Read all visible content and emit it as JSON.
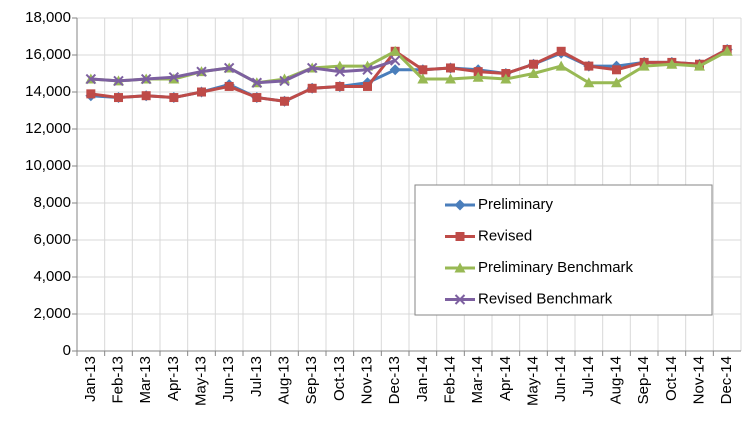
{
  "chart_data": {
    "type": "line",
    "categories": [
      "Jan-13",
      "Feb-13",
      "Mar-13",
      "Apr-13",
      "May-13",
      "Jun-13",
      "Jul-13",
      "Aug-13",
      "Sep-13",
      "Oct-13",
      "Nov-13",
      "Dec-13",
      "Jan-14",
      "Feb-14",
      "Mar-14",
      "Apr-14",
      "May-14",
      "Jun-14",
      "Jul-14",
      "Aug-14",
      "Sep-14",
      "Oct-14",
      "Nov-14",
      "Dec-14"
    ],
    "series": [
      {
        "name": "Preliminary",
        "color": "#4a7ebb",
        "marker": "diamond",
        "values": [
          13800,
          13700,
          13800,
          13700,
          14000,
          14400,
          13700,
          13500,
          14200,
          14300,
          14500,
          15200,
          15200,
          15300,
          15200,
          15000,
          15500,
          16100,
          15400,
          15400,
          15600,
          15600,
          15500,
          16300
        ]
      },
      {
        "name": "Revised",
        "color": "#be4b48",
        "marker": "square",
        "values": [
          13900,
          13700,
          13800,
          13700,
          14000,
          14300,
          13700,
          13500,
          14200,
          14300,
          14300,
          16200,
          15200,
          15300,
          15100,
          15000,
          15500,
          16200,
          15400,
          15200,
          15600,
          15600,
          15500,
          16300
        ]
      },
      {
        "name": "Preliminary Benchmark",
        "color": "#98b954",
        "marker": "triangle",
        "values": [
          14700,
          14600,
          14700,
          14700,
          15100,
          15300,
          14500,
          14700,
          15300,
          15400,
          15400,
          16200,
          14700,
          14700,
          14800,
          14700,
          15000,
          15400,
          14500,
          14500,
          15400,
          15500,
          15400,
          16200
        ]
      },
      {
        "name": "Revised Benchmark",
        "color": "#7d60a0",
        "marker": "x",
        "values": [
          14700,
          14600,
          14700,
          14800,
          15100,
          15300,
          14500,
          14600,
          15300,
          15100,
          15200,
          15700,
          null,
          null,
          null,
          null,
          null,
          null,
          null,
          null,
          null,
          null,
          null,
          null
        ]
      }
    ],
    "ylim": [
      0,
      18000
    ],
    "yticks": [
      0,
      {
        "value": 2000,
        "label": "2,000"
      },
      {
        "value": 4000,
        "label": "4,000"
      },
      {
        "value": 6000,
        "label": "6,000"
      },
      {
        "value": 8000,
        "label": "8,000"
      },
      {
        "value": 10000,
        "label": "10,000"
      },
      {
        "value": 12000,
        "label": "12,000"
      },
      {
        "value": 14000,
        "label": "14,000"
      },
      {
        "value": 16000,
        "label": "16,000"
      },
      {
        "value": 18000,
        "label": "18,000"
      }
    ],
    "grid": true,
    "legend": "lower-right"
  }
}
